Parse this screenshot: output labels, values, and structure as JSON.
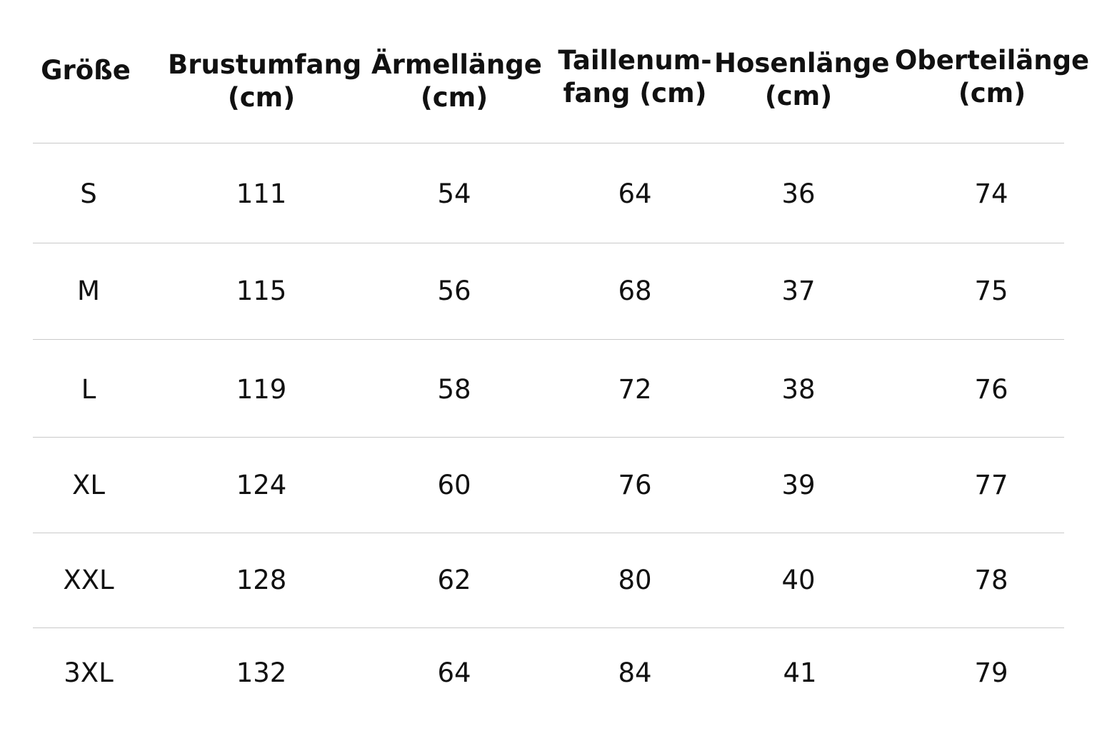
{
  "table": {
    "headers": [
      "Größe",
      "Brustumfang\n(cm)",
      "Ärmellänge\n(cm)",
      "Taillenum-\nfang (cm)",
      "Hosenlänge\n(cm)",
      "Oberteilänge\n(cm)"
    ],
    "rows": [
      [
        "S",
        "111",
        "54",
        "64",
        "36",
        "74"
      ],
      [
        "M",
        "115",
        "56",
        "68",
        "37",
        "75"
      ],
      [
        "L",
        "119",
        "58",
        "72",
        "38",
        "76"
      ],
      [
        "XL",
        "124",
        "60",
        "76",
        "39",
        "77"
      ],
      [
        "XXL",
        "128",
        "62",
        "80",
        "40",
        "78"
      ],
      [
        "3XL",
        "132",
        "64",
        "84",
        "41",
        "79"
      ]
    ]
  }
}
